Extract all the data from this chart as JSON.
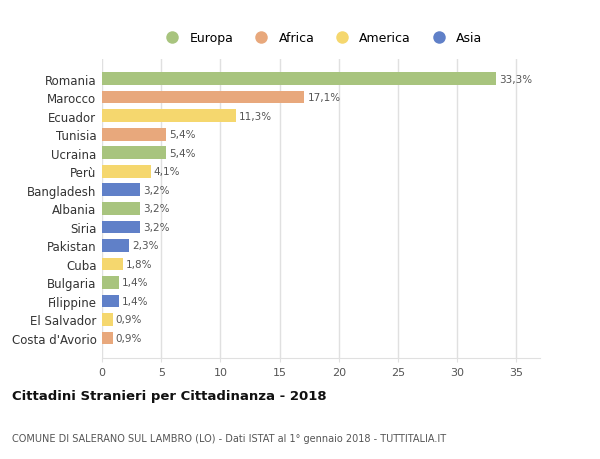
{
  "countries": [
    "Romania",
    "Marocco",
    "Ecuador",
    "Tunisia",
    "Ucraina",
    "Perù",
    "Bangladesh",
    "Albania",
    "Siria",
    "Pakistan",
    "Cuba",
    "Bulgaria",
    "Filippine",
    "El Salvador",
    "Costa d'Avorio"
  ],
  "values": [
    33.3,
    17.1,
    11.3,
    5.4,
    5.4,
    4.1,
    3.2,
    3.2,
    3.2,
    2.3,
    1.8,
    1.4,
    1.4,
    0.9,
    0.9
  ],
  "labels": [
    "33,3%",
    "17,1%",
    "11,3%",
    "5,4%",
    "5,4%",
    "4,1%",
    "3,2%",
    "3,2%",
    "3,2%",
    "2,3%",
    "1,8%",
    "1,4%",
    "1,4%",
    "0,9%",
    "0,9%"
  ],
  "continents": [
    "Europa",
    "Africa",
    "America",
    "Africa",
    "Europa",
    "America",
    "Asia",
    "Europa",
    "Asia",
    "Asia",
    "America",
    "Europa",
    "Asia",
    "America",
    "Africa"
  ],
  "colors": {
    "Europa": "#a8c47e",
    "Africa": "#e8a87c",
    "America": "#f5d76e",
    "Asia": "#6080c8"
  },
  "title": "Cittadini Stranieri per Cittadinanza - 2018",
  "subtitle": "COMUNE DI SALERANO SUL LAMBRO (LO) - Dati ISTAT al 1° gennaio 2018 - TUTTITALIA.IT",
  "xlabel_ticks": [
    0,
    5,
    10,
    15,
    20,
    25,
    30,
    35
  ],
  "xlim": [
    0,
    37
  ],
  "background_color": "#ffffff",
  "plot_background": "#ffffff",
  "grid_color": "#e0e0e0"
}
